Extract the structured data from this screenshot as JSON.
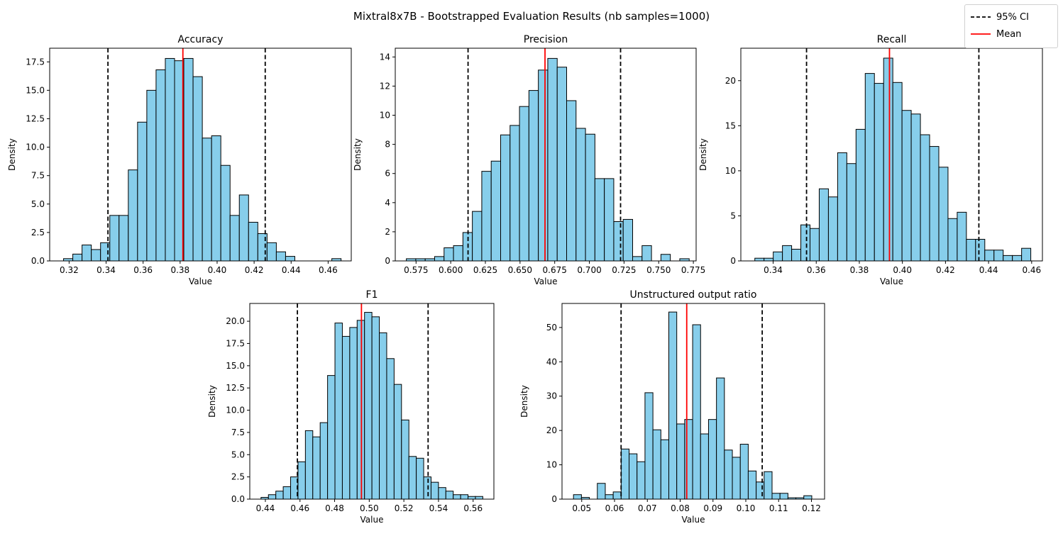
{
  "figure": {
    "title": "Mixtral8x7B - Bootstrapped Evaluation Results (nb samples=1000)",
    "bar_color": "#87CEEB",
    "mean_color": "#ff0000",
    "ci_color": "#000000"
  },
  "legend": {
    "ci_label": "95% CI",
    "mean_label": "Mean"
  },
  "chart_data": [
    {
      "type": "bar",
      "title": "Accuracy",
      "xlabel": "Value",
      "ylabel": "Density",
      "xlim": [
        0.3095,
        0.4725
      ],
      "ylim": [
        0,
        18.7
      ],
      "xticks": [
        0.32,
        0.34,
        0.36,
        0.38,
        0.4,
        0.42,
        0.44,
        0.46
      ],
      "xtick_labels": [
        "0.32",
        "0.34",
        "0.36",
        "0.38",
        "0.40",
        "0.42",
        "0.44",
        "0.46"
      ],
      "yticks": [
        0,
        2.5,
        5,
        7.5,
        10,
        12.5,
        15,
        17.5
      ],
      "ytick_labels": [
        "0.0",
        "2.5",
        "5.0",
        "7.5",
        "10.0",
        "12.5",
        "15.0",
        "17.5"
      ],
      "bin_start": 0.317,
      "bin_width": 0.005,
      "values": [
        0.2,
        0.6,
        1.4,
        1.0,
        1.6,
        4.0,
        4.0,
        8.0,
        12.2,
        15.0,
        16.8,
        17.8,
        17.6,
        17.8,
        16.2,
        10.8,
        11.0,
        8.4,
        4.0,
        5.8,
        3.4,
        2.4,
        1.6,
        0.8,
        0.4,
        0,
        0,
        0,
        0,
        0.2
      ],
      "mean": 0.3815,
      "ci": [
        0.341,
        0.426
      ]
    },
    {
      "type": "bar",
      "title": "Precision",
      "xlabel": "Value",
      "ylabel": "Density",
      "xlim": [
        0.56,
        0.777
      ],
      "ylim": [
        0,
        14.6
      ],
      "xticks": [
        0.575,
        0.6,
        0.625,
        0.65,
        0.675,
        0.7,
        0.725,
        0.75,
        0.775
      ],
      "xtick_labels": [
        "0.575",
        "0.600",
        "0.625",
        "0.650",
        "0.675",
        "0.700",
        "0.725",
        "0.750",
        "0.775"
      ],
      "yticks": [
        0,
        2,
        4,
        6,
        8,
        10,
        12,
        14
      ],
      "ytick_labels": [
        "0",
        "2",
        "4",
        "6",
        "8",
        "10",
        "12",
        "14"
      ],
      "bin_start": 0.568,
      "bin_width": 0.0068,
      "values": [
        0.15,
        0.15,
        0.15,
        0.3,
        0.9,
        1.05,
        1.95,
        3.4,
        6.15,
        6.85,
        8.65,
        9.3,
        10.6,
        11.7,
        13.1,
        13.9,
        13.3,
        11.0,
        9.1,
        8.7,
        5.65,
        5.65,
        2.7,
        2.85,
        0.3,
        1.05,
        0,
        0.45,
        0,
        0.15
      ],
      "mean": 0.668,
      "ci": [
        0.6125,
        0.7225
      ]
    },
    {
      "type": "bar",
      "title": "Recall",
      "xlabel": "Value",
      "ylabel": "Density",
      "xlim": [
        0.325,
        0.465
      ],
      "ylim": [
        0,
        23.6
      ],
      "xticks": [
        0.34,
        0.36,
        0.38,
        0.4,
        0.42,
        0.44,
        0.46
      ],
      "xtick_labels": [
        "0.34",
        "0.36",
        "0.38",
        "0.40",
        "0.42",
        "0.44",
        "0.46"
      ],
      "yticks": [
        0,
        5,
        10,
        15,
        20
      ],
      "ytick_labels": [
        "0",
        "5",
        "10",
        "15",
        "20"
      ],
      "bin_start": 0.3315,
      "bin_width": 0.00427,
      "values": [
        0.3,
        0.3,
        1.0,
        1.7,
        1.3,
        4.0,
        3.6,
        8.0,
        7.1,
        12.0,
        10.8,
        14.6,
        20.8,
        19.7,
        22.5,
        19.8,
        16.7,
        16.3,
        14.0,
        12.7,
        10.4,
        4.7,
        5.4,
        2.4,
        2.4,
        1.2,
        1.2,
        0.6,
        0.6,
        1.4
      ],
      "mean": 0.394,
      "ci": [
        0.3555,
        0.4355
      ]
    },
    {
      "type": "bar",
      "title": "F1",
      "xlabel": "Value",
      "ylabel": "Density",
      "xlim": [
        0.431,
        0.572
      ],
      "ylim": [
        0,
        22.0
      ],
      "xticks": [
        0.44,
        0.46,
        0.48,
        0.5,
        0.52,
        0.54,
        0.56
      ],
      "xtick_labels": [
        "0.44",
        "0.46",
        "0.48",
        "0.50",
        "0.52",
        "0.54",
        "0.56"
      ],
      "yticks": [
        0,
        2.5,
        5,
        7.5,
        10,
        12.5,
        15,
        17.5,
        20
      ],
      "ytick_labels": [
        "0.0",
        "2.5",
        "5.0",
        "7.5",
        "10.0",
        "12.5",
        "15.0",
        "17.5",
        "20.0"
      ],
      "bin_start": 0.4375,
      "bin_width": 0.00427,
      "values": [
        0.2,
        0.5,
        0.9,
        1.4,
        2.5,
        4.2,
        7.7,
        7.0,
        8.6,
        13.9,
        19.8,
        18.3,
        19.3,
        20.1,
        21.0,
        20.5,
        18.7,
        15.8,
        12.9,
        8.9,
        4.8,
        4.6,
        2.5,
        1.9,
        1.3,
        0.9,
        0.5,
        0.5,
        0.3,
        0.3
      ],
      "mean": 0.4955,
      "ci": [
        0.4585,
        0.534
      ]
    },
    {
      "type": "bar",
      "title": "Unstructured output ratio",
      "xlabel": "Value",
      "ylabel": "Density",
      "xlim": [
        0.044,
        0.124
      ],
      "ylim": [
        0,
        57.0
      ],
      "xticks": [
        0.05,
        0.06,
        0.07,
        0.08,
        0.09,
        0.1,
        0.11,
        0.12
      ],
      "xtick_labels": [
        "0.05",
        "0.06",
        "0.07",
        "0.08",
        "0.09",
        "0.10",
        "0.11",
        "0.12"
      ],
      "yticks": [
        0,
        10,
        20,
        30,
        40,
        50
      ],
      "ytick_labels": [
        "0",
        "10",
        "20",
        "30",
        "40",
        "50"
      ],
      "bin_start": 0.0475,
      "bin_width": 0.00242,
      "values": [
        1.3,
        0.5,
        0,
        4.6,
        1.3,
        2.1,
        14.6,
        13.2,
        10.9,
        31.0,
        20.2,
        17.3,
        54.5,
        21.9,
        23.2,
        50.8,
        19.0,
        23.2,
        35.3,
        14.3,
        12.2,
        16.0,
        8.2,
        5.0,
        8.0,
        1.7,
        1.7,
        0.4,
        0.4,
        1.0
      ],
      "mean": 0.082,
      "ci": [
        0.062,
        0.105
      ]
    }
  ]
}
